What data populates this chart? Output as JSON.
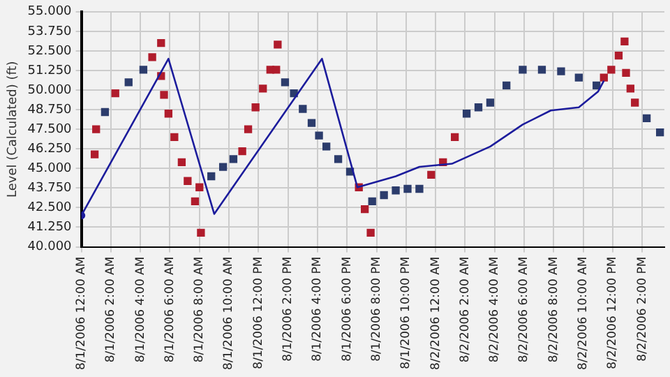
{
  "chart_data": {
    "type": "line",
    "ylabel": "Level (Calculated) (ft)",
    "grid": true,
    "legend": false,
    "xlim": [
      "2006-08-01T00:00",
      "2006-08-02T15:30"
    ],
    "xticks": [
      {
        "value": "2006-08-01T00:00",
        "label": "8/1/2006 12:00 AM"
      },
      {
        "value": "2006-08-01T02:00",
        "label": "8/1/2006 2:00 AM"
      },
      {
        "value": "2006-08-01T04:00",
        "label": "8/1/2006 4:00 AM"
      },
      {
        "value": "2006-08-01T06:00",
        "label": "8/1/2006 6:00 AM"
      },
      {
        "value": "2006-08-01T08:00",
        "label": "8/1/2006 8:00 AM"
      },
      {
        "value": "2006-08-01T10:00",
        "label": "8/1/2006 10:00 AM"
      },
      {
        "value": "2006-08-01T12:00",
        "label": "8/1/2006 12:00 PM"
      },
      {
        "value": "2006-08-01T14:00",
        "label": "8/1/2006 2:00 PM"
      },
      {
        "value": "2006-08-01T16:00",
        "label": "8/1/2006 4:00 PM"
      },
      {
        "value": "2006-08-01T18:00",
        "label": "8/1/2006 6:00 PM"
      },
      {
        "value": "2006-08-01T20:00",
        "label": "8/1/2006 8:00 PM"
      },
      {
        "value": "2006-08-01T22:00",
        "label": "8/1/2006 10:00 PM"
      },
      {
        "value": "2006-08-02T00:00",
        "label": "8/2/2006 12:00 AM"
      },
      {
        "value": "2006-08-02T02:00",
        "label": "8/2/2006 2:00 AM"
      },
      {
        "value": "2006-08-02T04:00",
        "label": "8/2/2006 4:00 AM"
      },
      {
        "value": "2006-08-02T06:00",
        "label": "8/2/2006 6:00 AM"
      },
      {
        "value": "2006-08-02T08:00",
        "label": "8/2/2006 8:00 AM"
      },
      {
        "value": "2006-08-02T10:00",
        "label": "8/2/2006 10:00 AM"
      },
      {
        "value": "2006-08-02T12:00",
        "label": "8/2/2006 12:00 PM"
      },
      {
        "value": "2006-08-02T14:00",
        "label": "8/2/2006 2:00 PM"
      }
    ],
    "ylim": [
      40,
      55
    ],
    "yticks": [
      {
        "value": 40,
        "label": "40.000"
      },
      {
        "value": 41.25,
        "label": "41.250"
      },
      {
        "value": 42.5,
        "label": "42.500"
      },
      {
        "value": 43.75,
        "label": "43.750"
      },
      {
        "value": 45,
        "label": "45.000"
      },
      {
        "value": 46.25,
        "label": "46.250"
      },
      {
        "value": 47.5,
        "label": "47.500"
      },
      {
        "value": 48.75,
        "label": "48.750"
      },
      {
        "value": 50,
        "label": "50.000"
      },
      {
        "value": 51.25,
        "label": "51.250"
      },
      {
        "value": 52.5,
        "label": "52.500"
      },
      {
        "value": 53.75,
        "label": "53.750"
      },
      {
        "value": 55,
        "label": "55.000"
      }
    ],
    "series": [
      {
        "color": "#1c1c9c",
        "marker": "none",
        "line_style": "solid",
        "x": [
          "2006-08-01T00:00",
          "2006-08-01T05:54",
          "2006-08-01T09:00",
          "2006-08-01T16:18",
          "2006-08-01T18:42",
          "2006-08-01T21:18",
          "2006-08-01T22:54",
          "2006-08-02T01:06",
          "2006-08-02T03:42",
          "2006-08-02T05:54",
          "2006-08-02T07:48",
          "2006-08-02T09:42",
          "2006-08-02T11:00",
          "2006-08-02T11:24"
        ],
        "values": [
          42.0,
          52.0,
          42.1,
          52.0,
          43.8,
          44.5,
          45.1,
          45.3,
          46.4,
          47.8,
          48.7,
          48.9,
          49.9,
          50.6
        ]
      },
      {
        "type": "scatter",
        "color": "#1c1c9c",
        "marker": "circle",
        "x": [
          "2006-08-01T00:00"
        ],
        "values": [
          42.0
        ]
      },
      {
        "type": "scatter",
        "color": "#2c3c6c",
        "marker": "square",
        "x": [
          "2006-08-01T00:54",
          "2006-08-01T01:00",
          "2006-08-01T01:36",
          "2006-08-01T02:18",
          "2006-08-01T03:12",
          "2006-08-01T04:12",
          "2006-08-01T04:48",
          "2006-08-01T05:24",
          "2006-08-01T05:24",
          "2006-08-01T05:36",
          "2006-08-01T05:54",
          "2006-08-01T06:18",
          "2006-08-01T06:48",
          "2006-08-01T07:12",
          "2006-08-01T07:42",
          "2006-08-01T08:06",
          "2006-08-01T08:00",
          "2006-08-01T08:48",
          "2006-08-01T09:36",
          "2006-08-01T10:18",
          "2006-08-01T10:54",
          "2006-08-01T11:18",
          "2006-08-01T11:48",
          "2006-08-01T12:18",
          "2006-08-01T12:48",
          "2006-08-01T13:18",
          "2006-08-01T13:12",
          "2006-08-01T13:48",
          "2006-08-01T14:24",
          "2006-08-01T15:00",
          "2006-08-01T15:36",
          "2006-08-01T16:06",
          "2006-08-01T16:36",
          "2006-08-01T17:24",
          "2006-08-01T18:12",
          "2006-08-01T18:48",
          "2006-08-01T19:12",
          "2006-08-01T19:36",
          "2006-08-01T19:42",
          "2006-08-01T20:30",
          "2006-08-01T21:18",
          "2006-08-01T22:06",
          "2006-08-01T22:54",
          "2006-08-01T23:42",
          "2006-08-02T00:30",
          "2006-08-02T01:18",
          "2006-08-02T02:06",
          "2006-08-02T02:54",
          "2006-08-02T03:42",
          "2006-08-02T04:48",
          "2006-08-02T05:54",
          "2006-08-02T07:12",
          "2006-08-02T08:30",
          "2006-08-02T09:42",
          "2006-08-02T10:54",
          "2006-08-02T11:24",
          "2006-08-02T11:54",
          "2006-08-02T12:24",
          "2006-08-02T12:48",
          "2006-08-02T12:54",
          "2006-08-02T13:12",
          "2006-08-02T13:30",
          "2006-08-02T14:18",
          "2006-08-02T15:12"
        ],
        "values": [
          45.9,
          47.5,
          48.6,
          49.8,
          50.5,
          51.3,
          52.1,
          53.0,
          50.9,
          49.7,
          48.5,
          47.0,
          45.4,
          44.2,
          42.9,
          40.9,
          43.8,
          44.5,
          45.1,
          45.6,
          46.1,
          47.5,
          48.9,
          50.1,
          51.3,
          52.9,
          51.3,
          50.5,
          49.8,
          48.8,
          47.9,
          47.1,
          46.4,
          45.6,
          44.8,
          43.8,
          42.4,
          40.9,
          42.9,
          43.3,
          43.6,
          43.7,
          43.7,
          44.6,
          45.4,
          47.0,
          48.5,
          48.9,
          49.2,
          50.3,
          51.3,
          51.3,
          51.2,
          50.8,
          50.3,
          50.8,
          51.3,
          52.2,
          53.1,
          51.1,
          50.1,
          49.2,
          48.2,
          47.3
        ],
        "colors": [
          "#b01c2c",
          "#b01c2c",
          "#2c3c6c",
          "#b01c2c",
          "#2c3c6c",
          "#2c3c6c",
          "#b01c2c",
          "#b01c2c",
          "#b01c2c",
          "#b01c2c",
          "#b01c2c",
          "#b01c2c",
          "#b01c2c",
          "#b01c2c",
          "#b01c2c",
          "#b01c2c",
          "#b01c2c",
          "#2c3c6c",
          "#2c3c6c",
          "#2c3c6c",
          "#b01c2c",
          "#b01c2c",
          "#b01c2c",
          "#b01c2c",
          "#b01c2c",
          "#b01c2c",
          "#b01c2c",
          "#2c3c6c",
          "#2c3c6c",
          "#2c3c6c",
          "#2c3c6c",
          "#2c3c6c",
          "#2c3c6c",
          "#2c3c6c",
          "#2c3c6c",
          "#b01c2c",
          "#b01c2c",
          "#b01c2c",
          "#2c3c6c",
          "#2c3c6c",
          "#2c3c6c",
          "#2c3c6c",
          "#2c3c6c",
          "#b01c2c",
          "#b01c2c",
          "#b01c2c",
          "#2c3c6c",
          "#2c3c6c",
          "#2c3c6c",
          "#2c3c6c",
          "#2c3c6c",
          "#2c3c6c",
          "#2c3c6c",
          "#2c3c6c",
          "#2c3c6c",
          "#b01c2c",
          "#b01c2c",
          "#b01c2c",
          "#b01c2c",
          "#b01c2c",
          "#b01c2c",
          "#b01c2c",
          "#2c3c6c",
          "#2c3c6c"
        ]
      }
    ]
  }
}
